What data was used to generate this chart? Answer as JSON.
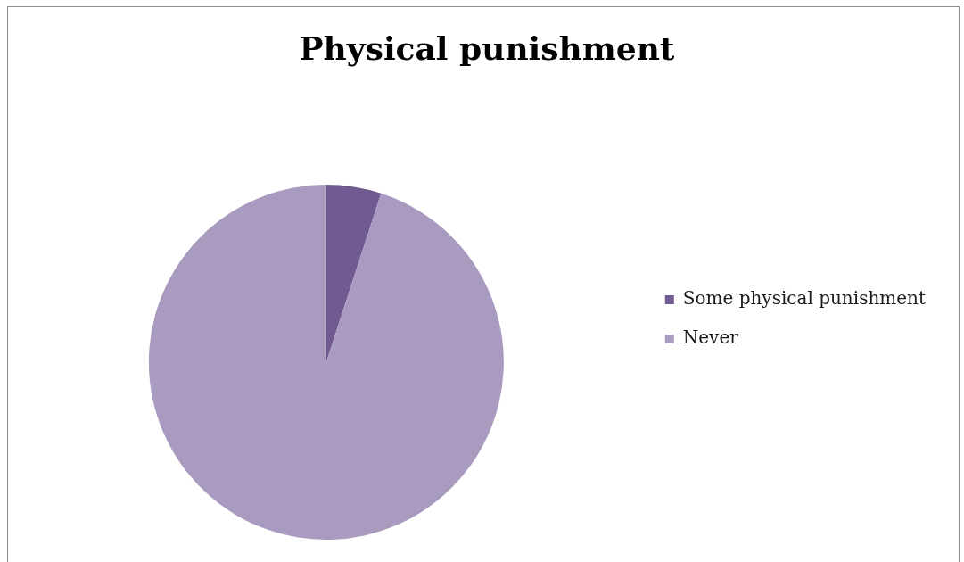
{
  "chart_data": {
    "type": "pie",
    "title": "Physical punishment",
    "categories": [
      "Some physical punishment",
      "Never"
    ],
    "values": [
      5,
      95
    ],
    "colors": [
      "#705a91",
      "#a99abf"
    ],
    "legend": "right"
  }
}
